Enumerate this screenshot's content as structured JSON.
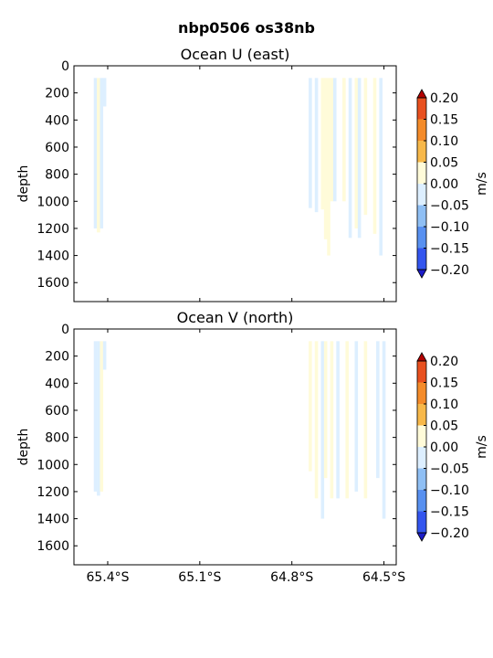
{
  "title": "nbp0506 os38nb",
  "chart_data": [
    {
      "type": "heatmap",
      "title": "Ocean U (east)",
      "ylabel": "depth",
      "xlabel": "",
      "x_ticks": [
        "65.4°S",
        "65.1°S",
        "64.8°S",
        "64.5°S"
      ],
      "x_tick_values": [
        -65.4,
        -65.1,
        -64.8,
        -64.5
      ],
      "xlim": [
        -65.51,
        -64.46
      ],
      "y_ticks": [
        "0",
        "200",
        "400",
        "600",
        "800",
        "1000",
        "1200",
        "1400",
        "1600"
      ],
      "ylim": [
        1740,
        0
      ],
      "y_inverted": true,
      "colorbar": {
        "label": "m/s",
        "tick_labels": [
          "0.20",
          "0.15",
          "0.10",
          "0.05",
          "0.00",
          "−0.05",
          "−0.10",
          "−0.15",
          "−0.20"
        ],
        "levels": [
          0.2,
          0.15,
          0.1,
          0.05,
          0.0,
          -0.05,
          -0.1,
          -0.15,
          -0.2
        ],
        "colors": [
          "#e8501f",
          "#f48b2a",
          "#f7b84a",
          "#fffbd9",
          "#ddefff",
          "#8fbff4",
          "#5890f0",
          "#3355ee"
        ],
        "extend": "both"
      },
      "series": [
        {
          "lat": -65.44,
          "max_depth": 1200,
          "band": "0.00 to -0.05"
        },
        {
          "lat": -65.43,
          "max_depth": 1230,
          "band": "0.00 to 0.05"
        },
        {
          "lat": -65.42,
          "max_depth": 1200,
          "band": "0.00 to -0.05"
        },
        {
          "lat": -65.41,
          "max_depth": 300,
          "band": "0.00 to -0.05"
        },
        {
          "lat": -64.74,
          "max_depth": 1050,
          "band": "0.00 to -0.05"
        },
        {
          "lat": -64.72,
          "max_depth": 1080,
          "band": "0.00 to -0.05"
        },
        {
          "lat": -64.7,
          "max_depth": 1060,
          "band": "0.00 to 0.05"
        },
        {
          "lat": -64.69,
          "max_depth": 1280,
          "band": "0.00 to 0.05"
        },
        {
          "lat": -64.68,
          "max_depth": 1400,
          "band": "0.00 to 0.05"
        },
        {
          "lat": -64.67,
          "max_depth": 1000,
          "band": "0.00 to 0.05"
        },
        {
          "lat": -64.66,
          "max_depth": 1000,
          "band": "0.00 to -0.05"
        },
        {
          "lat": -64.63,
          "max_depth": 1000,
          "band": "0.00 to 0.05"
        },
        {
          "lat": -64.61,
          "max_depth": 1270,
          "band": "0.00 to -0.05"
        },
        {
          "lat": -64.59,
          "max_depth": 1200,
          "band": "0.00 to 0.05"
        },
        {
          "lat": -64.58,
          "max_depth": 1270,
          "band": "0.00 to -0.05"
        },
        {
          "lat": -64.56,
          "max_depth": 1100,
          "band": "0.00 to 0.05"
        },
        {
          "lat": -64.53,
          "max_depth": 1240,
          "band": "0.00 to 0.05"
        },
        {
          "lat": -64.51,
          "max_depth": 1400,
          "band": "0.00 to -0.05"
        }
      ]
    },
    {
      "type": "heatmap",
      "title": "Ocean V (north)",
      "ylabel": "depth",
      "xlabel": "",
      "x_ticks": [
        "65.4°S",
        "65.1°S",
        "64.8°S",
        "64.5°S"
      ],
      "x_tick_values": [
        -65.4,
        -65.1,
        -64.8,
        -64.5
      ],
      "xlim": [
        -65.51,
        -64.46
      ],
      "y_ticks": [
        "0",
        "200",
        "400",
        "600",
        "800",
        "1000",
        "1200",
        "1400",
        "1600"
      ],
      "ylim": [
        1740,
        0
      ],
      "y_inverted": true,
      "colorbar": {
        "label": "m/s",
        "tick_labels": [
          "0.20",
          "0.15",
          "0.10",
          "0.05",
          "0.00",
          "−0.05",
          "−0.10",
          "−0.15",
          "−0.20"
        ],
        "levels": [
          0.2,
          0.15,
          0.1,
          0.05,
          0.0,
          -0.05,
          -0.1,
          -0.15,
          -0.2
        ],
        "colors": [
          "#e8501f",
          "#f48b2a",
          "#f7b84a",
          "#fffbd9",
          "#ddefff",
          "#8fbff4",
          "#5890f0",
          "#3355ee"
        ],
        "extend": "both"
      },
      "series": [
        {
          "lat": -65.44,
          "max_depth": 1200,
          "band": "0.00 to -0.05"
        },
        {
          "lat": -65.43,
          "max_depth": 1230,
          "band": "0.00 to -0.05"
        },
        {
          "lat": -65.42,
          "max_depth": 1200,
          "band": "0.00 to 0.05"
        },
        {
          "lat": -65.41,
          "max_depth": 300,
          "band": "0.00 to -0.05"
        },
        {
          "lat": -64.74,
          "max_depth": 1050,
          "band": "0.00 to 0.05"
        },
        {
          "lat": -64.72,
          "max_depth": 1250,
          "band": "0.00 to 0.05"
        },
        {
          "lat": -64.7,
          "max_depth": 1400,
          "band": "0.00 to -0.05"
        },
        {
          "lat": -64.69,
          "max_depth": 1100,
          "band": "0.00 to 0.05"
        },
        {
          "lat": -64.67,
          "max_depth": 1250,
          "band": "0.00 to 0.05"
        },
        {
          "lat": -64.65,
          "max_depth": 1250,
          "band": "0.00 to -0.05"
        },
        {
          "lat": -64.62,
          "max_depth": 1250,
          "band": "0.00 to 0.05"
        },
        {
          "lat": -64.59,
          "max_depth": 1200,
          "band": "0.00 to -0.05"
        },
        {
          "lat": -64.56,
          "max_depth": 1250,
          "band": "0.00 to 0.05"
        },
        {
          "lat": -64.52,
          "max_depth": 1100,
          "band": "0.00 to -0.05"
        },
        {
          "lat": -64.5,
          "max_depth": 1400,
          "band": "0.00 to -0.05"
        }
      ]
    }
  ]
}
